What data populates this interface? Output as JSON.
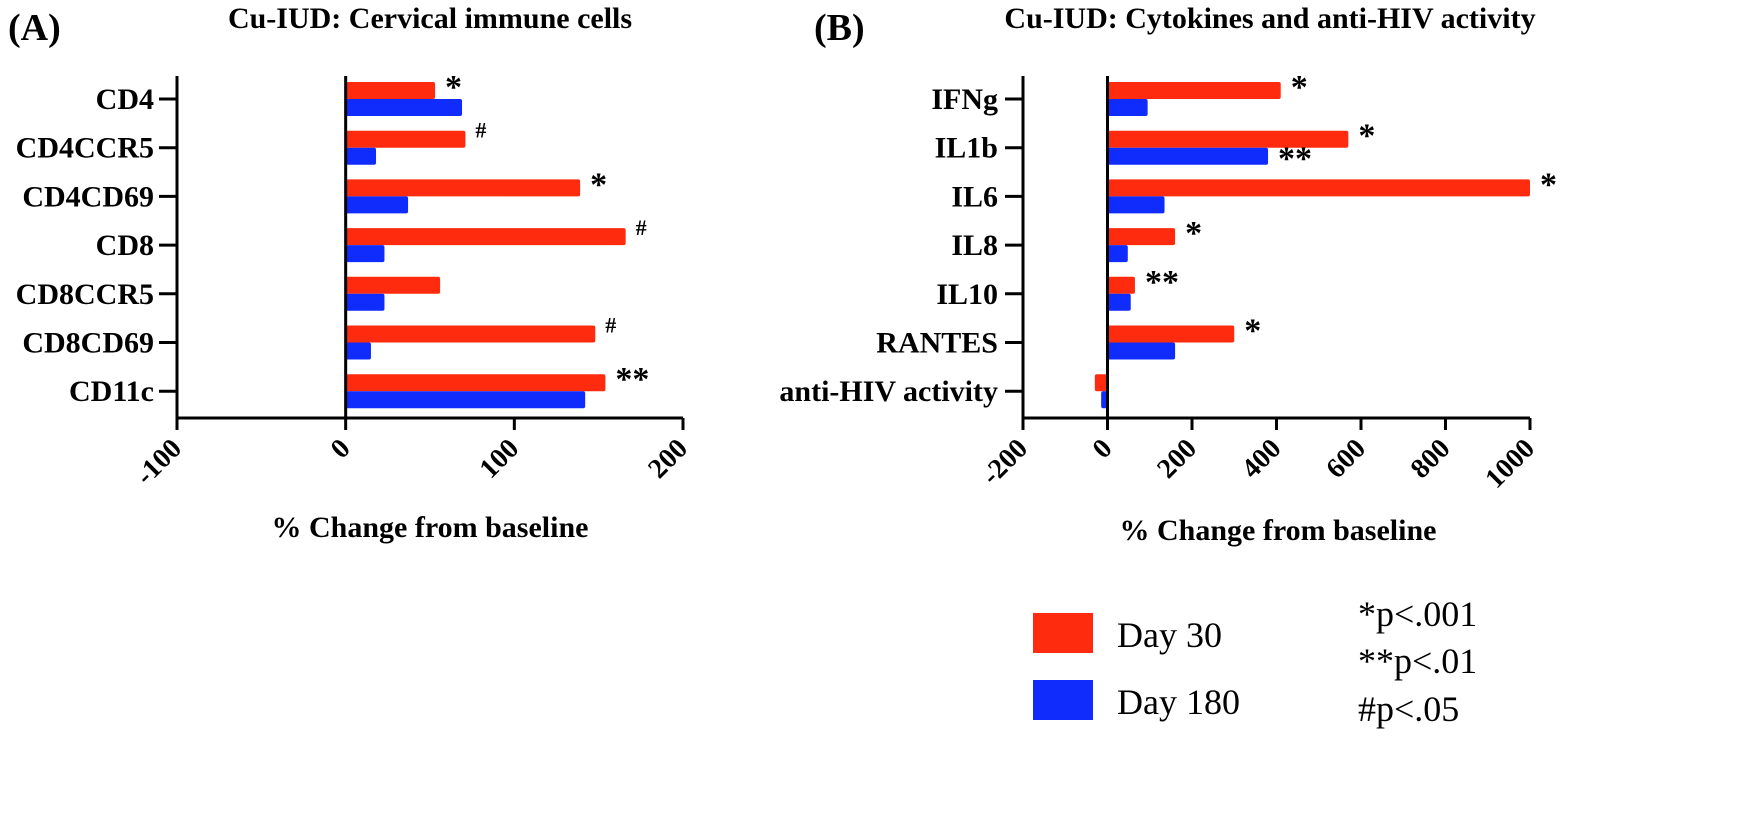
{
  "chart_data": [
    {
      "panel_label": "(A)",
      "type": "bar",
      "orientation": "horizontal",
      "title": "Cu-IUD: Cervical immune cells",
      "xlabel": "% Change from baseline",
      "xlim": [
        -100,
        200
      ],
      "xticks": [
        "-100",
        "0",
        "100",
        "200"
      ],
      "categories": [
        "CD4",
        "CD4CCR5",
        "CD4CD69",
        "CD8",
        "CD8CCR5",
        "CD8CD69",
        "CD11c"
      ],
      "series": [
        {
          "name": "Day 30",
          "values": [
            53,
            71,
            139,
            166,
            56,
            148,
            154
          ]
        },
        {
          "name": "Day 180",
          "values": [
            69,
            18,
            37,
            23,
            23,
            15,
            142
          ]
        }
      ],
      "annotations": [
        "*",
        "#",
        "*",
        "#",
        "",
        "#",
        "**"
      ]
    },
    {
      "panel_label": "(B)",
      "type": "bar",
      "orientation": "horizontal",
      "title": "Cu-IUD: Cytokines and anti-HIV activity",
      "xlabel": "% Change from baseline",
      "xlim": [
        -200,
        1000
      ],
      "xticks": [
        "-200",
        "0",
        "200",
        "400",
        "600",
        "800",
        "1000"
      ],
      "categories": [
        "IFNg",
        "IL1b",
        "IL6",
        "IL8",
        "IL10",
        "RANTES",
        "anti-HIV activity"
      ],
      "series": [
        {
          "name": "Day 30",
          "values": [
            410,
            570,
            1000,
            160,
            65,
            300,
            -30
          ]
        },
        {
          "name": "Day 180",
          "values": [
            95,
            380,
            135,
            48,
            55,
            160,
            -15
          ]
        }
      ],
      "annotations": [
        "*",
        "*",
        "*",
        "*",
        "**",
        "*",
        ""
      ],
      "annotations_day180": [
        "",
        "**",
        "",
        "",
        "",
        "",
        ""
      ]
    }
  ],
  "legend": {
    "items": [
      {
        "label": "Day 30",
        "color": "#fe2b0e"
      },
      {
        "label": "Day 180",
        "color": "#0f2cfd"
      }
    ],
    "notes": [
      "*p<.001",
      "**p<.01",
      "#p<.05"
    ]
  }
}
